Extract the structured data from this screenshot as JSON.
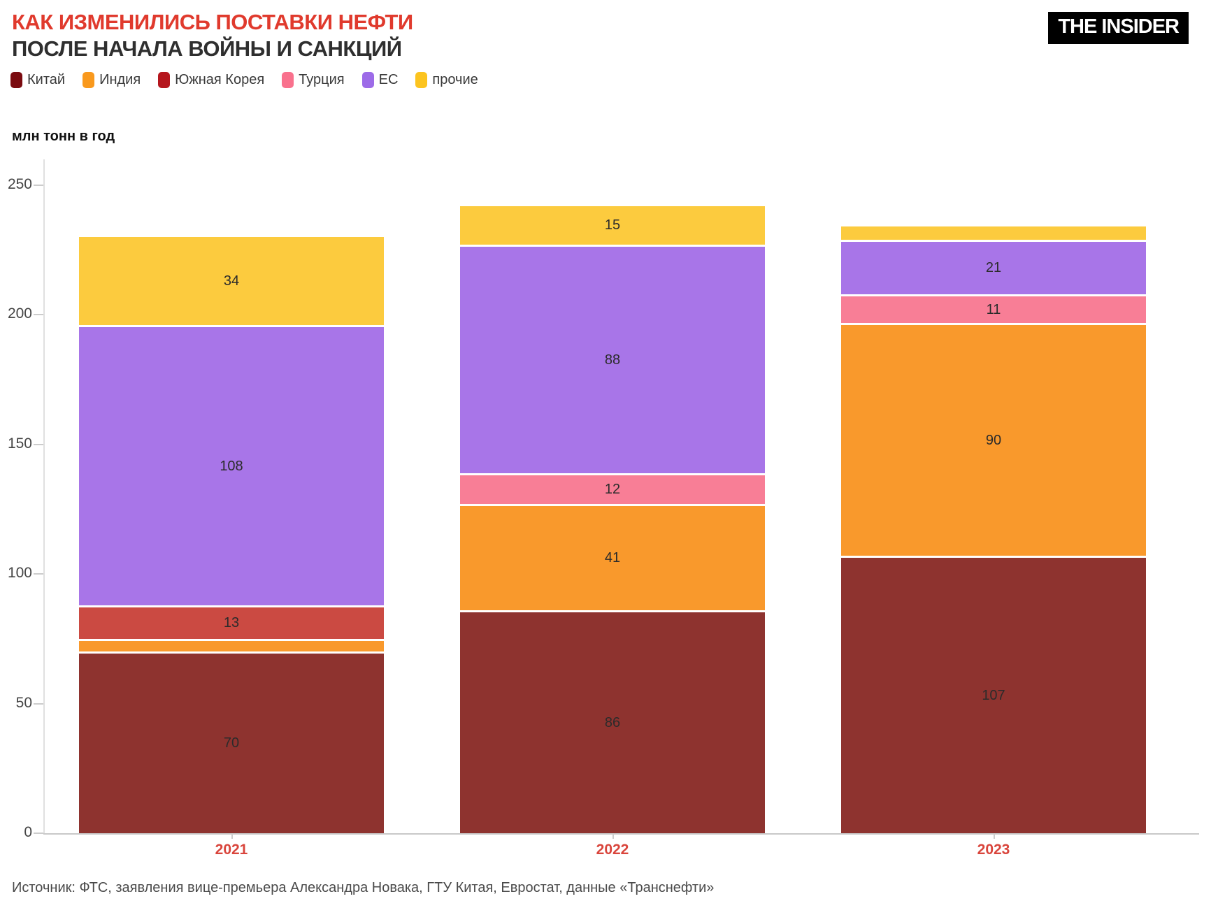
{
  "header": {
    "title_line1": "КАК ИЗМЕНИЛИСЬ ПОСТАВКИ НЕФТИ",
    "title_line2": "ПОСЛЕ НАЧАЛА ВОЙНЫ И САНКЦИЙ",
    "logo_text": "THE INSIDER"
  },
  "source_line": "Источник: ФТС, заявления вице-премьера Александра Новака, ГТУ Китая, Евростат, данные «Транснефти»",
  "colors": {
    "title_accent": "#E03A2D",
    "title_dark": "#2F2F2F",
    "logo_bg": "#000000",
    "logo_text": "#FFFFFF",
    "year_label": "#D9453C",
    "tick_label": "#454545",
    "axis_line": "#E0E0E0",
    "segment_label": "#2B2B2B",
    "source_text": "#4A4A4A"
  },
  "chart_data": {
    "type": "bar",
    "stacked": true,
    "title": "КАК ИЗМЕНИЛИСЬ ПОСТАВКИ НЕФТИ ПОСЛЕ НАЧАЛА ВОЙНЫ И САНКЦИЙ",
    "unit_label": "млн тонн в год",
    "categories": [
      "2021",
      "2022",
      "2023"
    ],
    "series": [
      {
        "name": "Китай",
        "color": "#8E332F",
        "legend_color": "#7B0B10",
        "values": [
          70,
          86,
          107
        ],
        "labels": [
          "70",
          "86",
          "107"
        ]
      },
      {
        "name": "Индия",
        "color": "#F9992C",
        "legend_color": "#F9991D",
        "values": [
          5,
          41,
          90
        ],
        "labels": [
          "",
          "41",
          "90"
        ]
      },
      {
        "name": "Южная Корея",
        "color": "#CB4A42",
        "legend_color": "#B5161D",
        "values": [
          13,
          0,
          0
        ],
        "labels": [
          "13",
          "",
          ""
        ]
      },
      {
        "name": "Турция",
        "color": "#F87E96",
        "legend_color": "#F9718D",
        "values": [
          0,
          12,
          11
        ],
        "labels": [
          "",
          "12",
          "11"
        ]
      },
      {
        "name": "ЕС",
        "color": "#A875E8",
        "legend_color": "#9D6BE8",
        "values": [
          108,
          88,
          21
        ],
        "labels": [
          "108",
          "88",
          "21"
        ]
      },
      {
        "name": "прочие",
        "color": "#FCCB3E",
        "legend_color": "#FCC41F",
        "values": [
          34,
          15,
          5
        ],
        "labels": [
          "34",
          "15",
          ""
        ]
      }
    ],
    "totals": [
      230,
      242,
      234
    ],
    "yticks": [
      0,
      50,
      100,
      150,
      200,
      250
    ],
    "ylim": [
      0,
      250
    ],
    "legend_position": "top",
    "grid": false
  }
}
